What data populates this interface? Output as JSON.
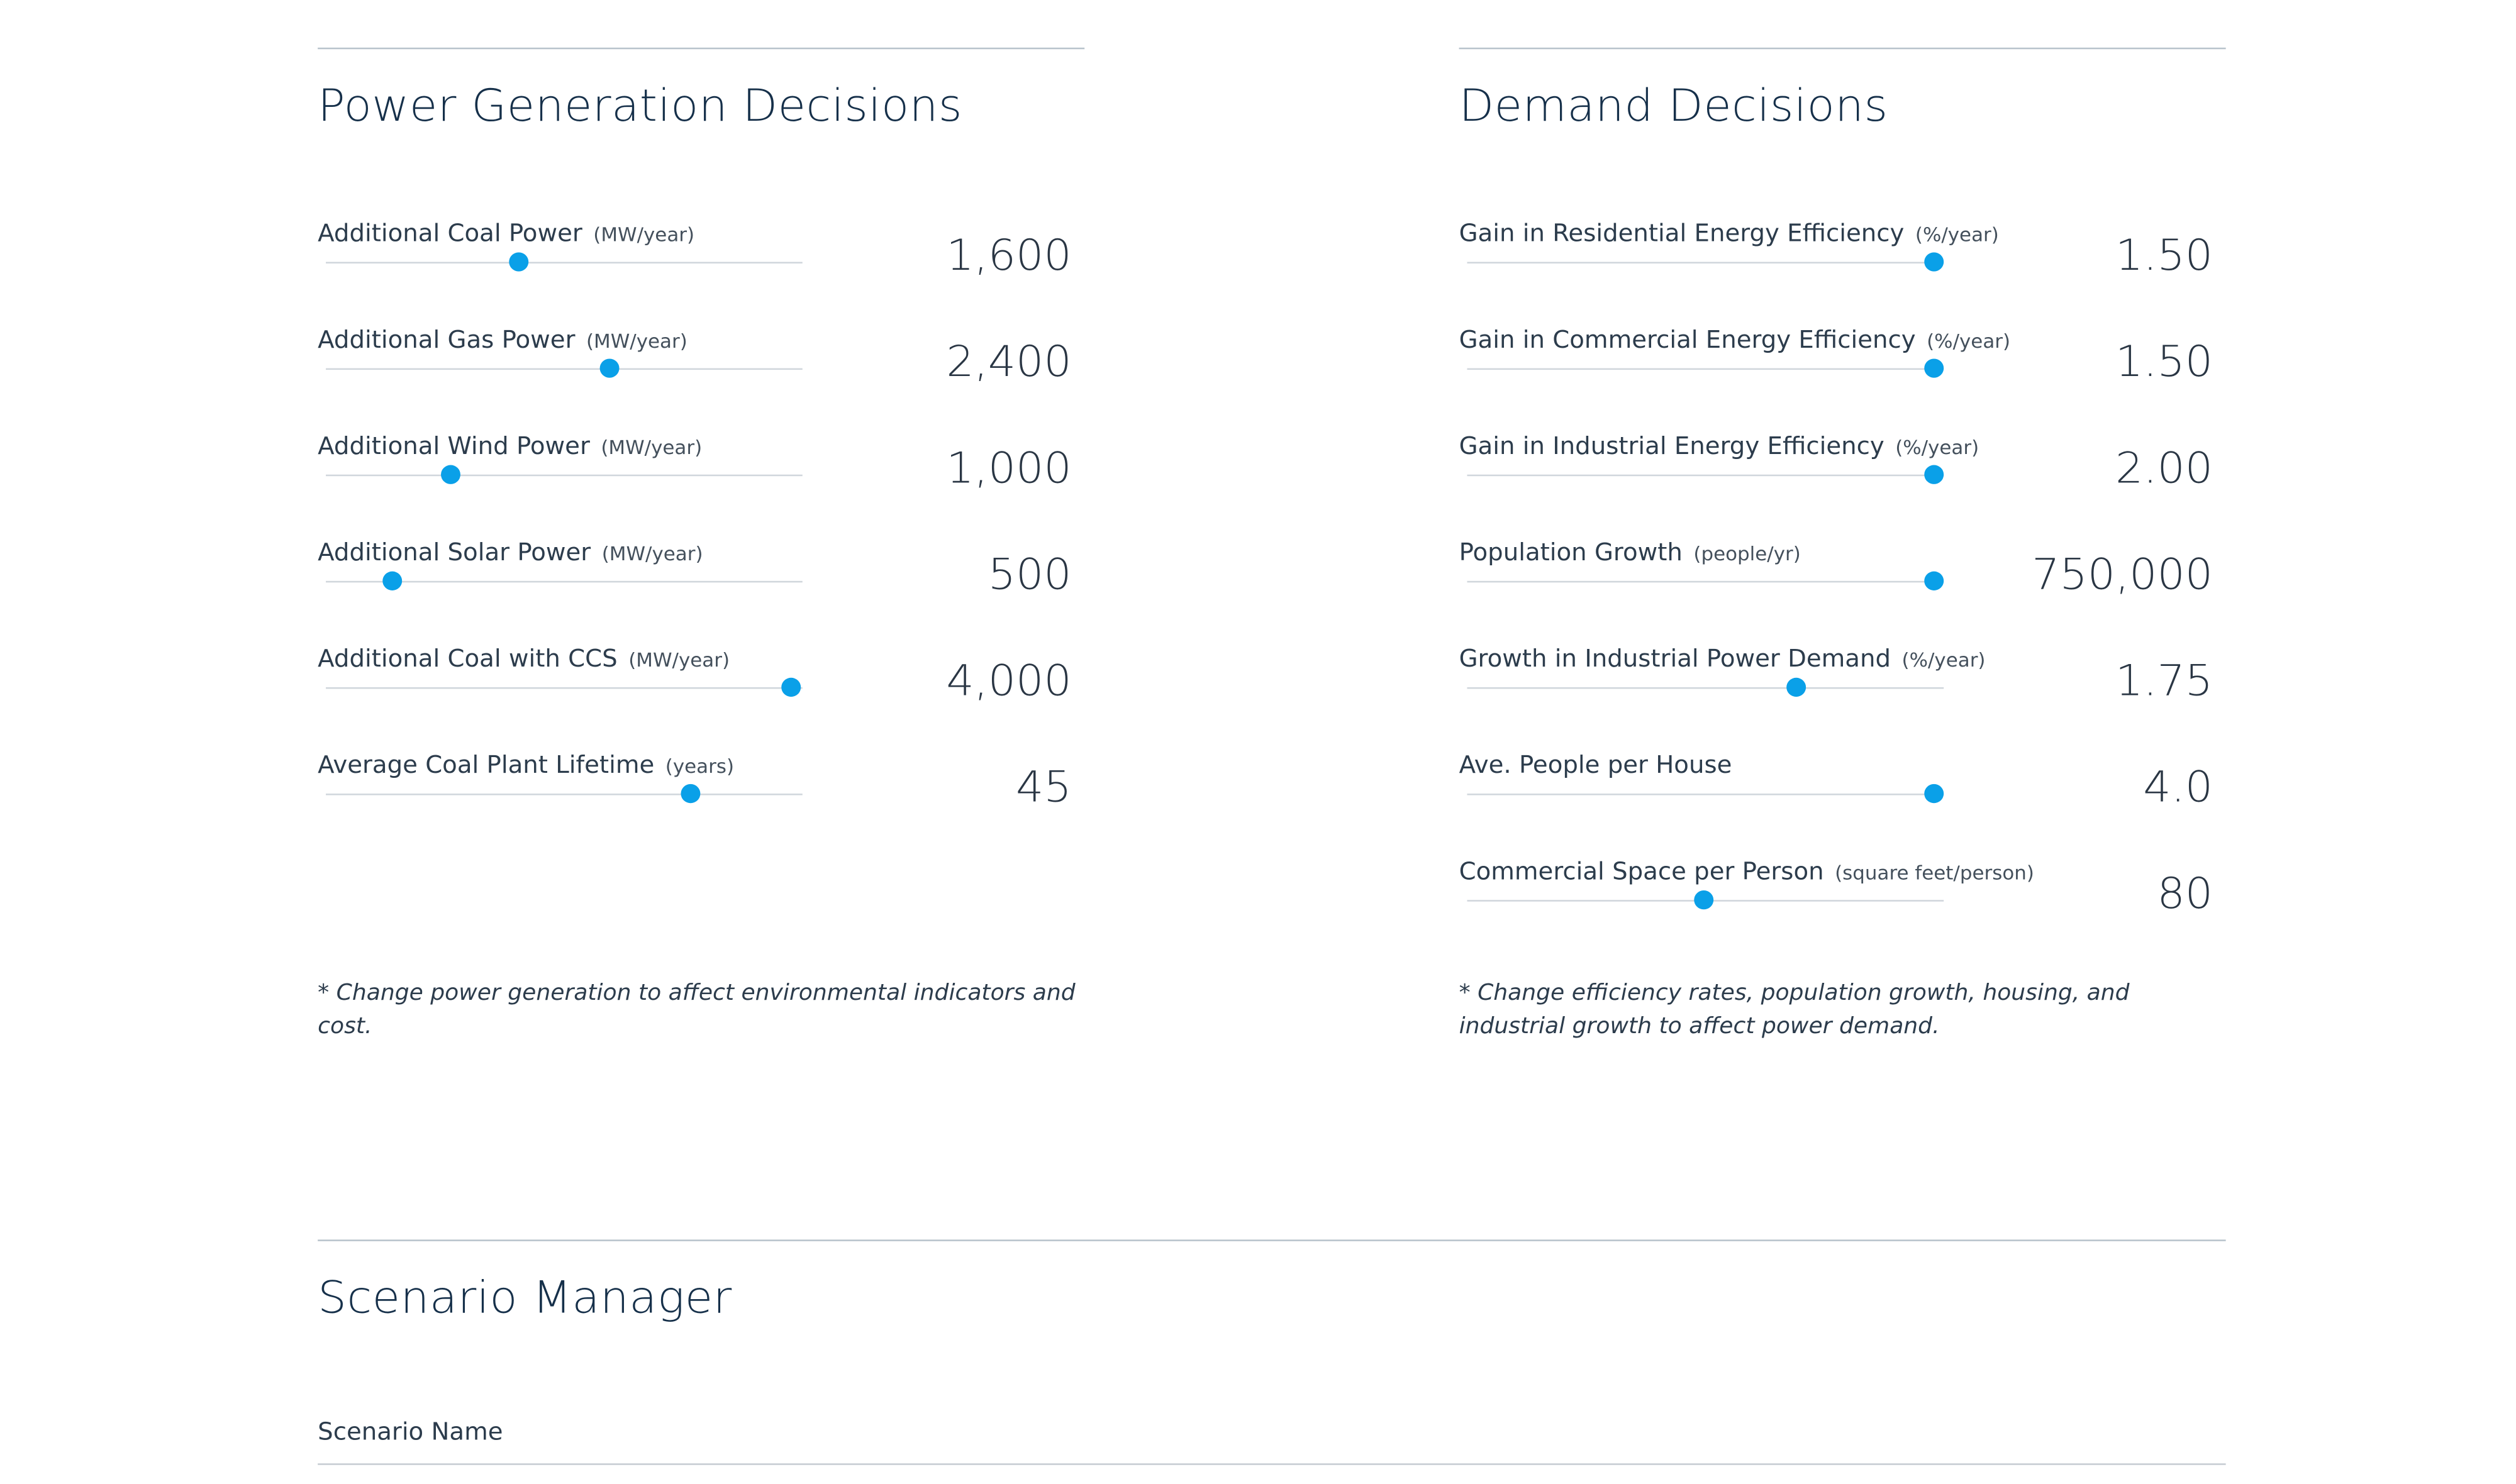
{
  "power": {
    "title": "Power Generation Decisions",
    "note": "* Change power generation to affect environmental indicators and cost.",
    "sliders": [
      {
        "label": "Additional Coal Power",
        "unit": "(MW/year)",
        "value": "1,600",
        "position": 0.405
      },
      {
        "label": "Additional Gas Power",
        "unit": "(MW/year)",
        "value": "2,400",
        "position": 0.595
      },
      {
        "label": "Additional Wind Power",
        "unit": "(MW/year)",
        "value": "1,000",
        "position": 0.262
      },
      {
        "label": "Additional Solar Power",
        "unit": "(MW/year)",
        "value": "500",
        "position": 0.139
      },
      {
        "label": "Additional Coal with CCS",
        "unit": "(MW/year)",
        "value": "4,000",
        "position": 0.976
      },
      {
        "label": "Average Coal Plant Lifetime",
        "unit": "(years)",
        "value": "45",
        "position": 0.765
      }
    ]
  },
  "demand": {
    "title": "Demand Decisions",
    "note": "* Change efficiency rates, population growth, housing, and industrial growth to affect power demand.",
    "sliders": [
      {
        "label": "Gain in Residential Energy Efficiency",
        "unit": "(%/year)",
        "value": "1.50",
        "position": 0.98
      },
      {
        "label": "Gain in Commercial Energy Efficiency",
        "unit": "(%/year)",
        "value": "1.50",
        "position": 0.98
      },
      {
        "label": "Gain in Industrial Energy Efficiency",
        "unit": "(%/year)",
        "value": "2.00",
        "position": 0.98
      },
      {
        "label": "Population Growth",
        "unit": "(people/yr)",
        "value": "750,000",
        "position": 0.98
      },
      {
        "label": "Growth in Industrial Power Demand",
        "unit": "(%/year)",
        "value": "1.75",
        "position": 0.69
      },
      {
        "label": "Ave. People per House",
        "unit": "",
        "value": "4.0",
        "position": 0.98
      },
      {
        "label": "Commercial Space per Person",
        "unit": "(square feet/person)",
        "value": "80",
        "position": 0.497
      }
    ]
  },
  "scenario": {
    "title": "Scenario Manager",
    "name_label": "Scenario Name"
  },
  "colors": {
    "accent": "#0aa0e8",
    "heading": "#16304a",
    "rule": "#b8c3cc"
  }
}
